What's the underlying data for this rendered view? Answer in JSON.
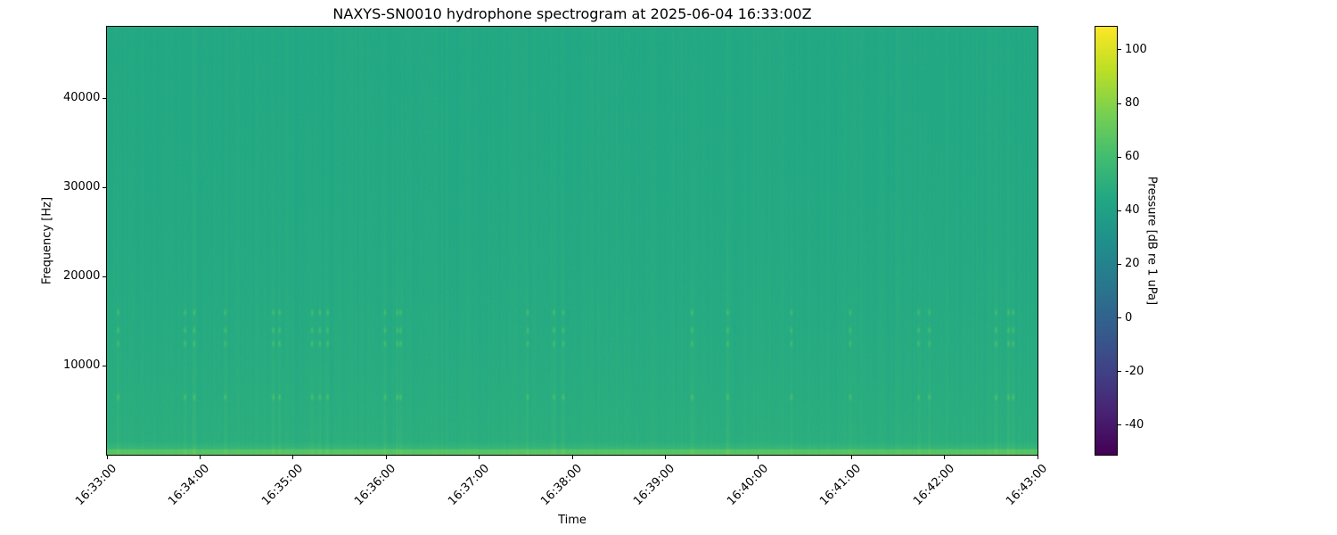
{
  "chart_data": {
    "type": "heatmap",
    "title": "NAXYS-SN0010 hydrophone spectrogram at 2025-06-04 16:33:00Z",
    "xlabel": "Time",
    "ylabel": "Frequency [Hz]",
    "colorbar_label": "Pressure [dB re 1 uPa]",
    "colormap": "viridis",
    "xlim": [
      "16:33:00",
      "16:43:00"
    ],
    "ylim": [
      0,
      48000
    ],
    "clim": [
      -51,
      108.6
    ],
    "x_ticks": [
      "16:33:00",
      "16:34:00",
      "16:35:00",
      "16:36:00",
      "16:37:00",
      "16:38:00",
      "16:39:00",
      "16:40:00",
      "16:41:00",
      "16:42:00",
      "16:43:00"
    ],
    "y_ticks": [
      10000,
      20000,
      30000,
      40000
    ],
    "colorbar_ticks": [
      -40,
      -20,
      0,
      20,
      40,
      60,
      80,
      100
    ],
    "background_level_db": {
      "high_freq": 45,
      "low_freq": 50,
      "lowest_band": 66
    },
    "transient_events": [
      "16:33:07",
      "16:33:50",
      "16:33:56",
      "16:34:16",
      "16:34:47",
      "16:34:51",
      "16:35:12",
      "16:35:17",
      "16:35:22",
      "16:35:59",
      "16:36:07",
      "16:36:09",
      "16:37:31",
      "16:37:48",
      "16:37:54",
      "16:39:17",
      "16:39:40",
      "16:40:21",
      "16:40:59",
      "16:41:43",
      "16:41:50",
      "16:42:33",
      "16:42:41",
      "16:42:44"
    ],
    "event_harmonic_bands_hz": [
      6500,
      12500,
      14000,
      16000
    ],
    "grid": false
  }
}
